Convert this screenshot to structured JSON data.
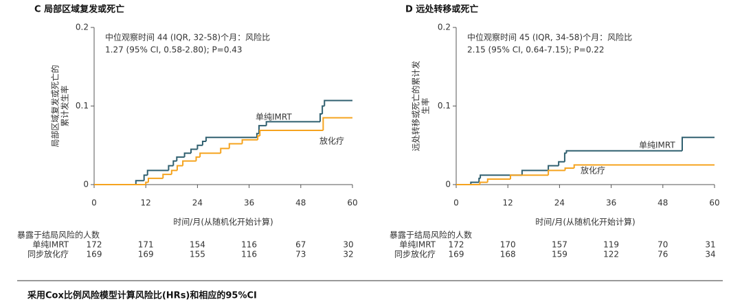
{
  "chart_data": [
    {
      "type": "line",
      "step": true,
      "title": "C 局部区域复发或死亡",
      "ylabel": [
        "局部区域复发或死亡的",
        "累计发生率"
      ],
      "xlabel": "时间/月(从随机化开始计算)",
      "annotation": [
        "中位观察时间 44 (IQR, 32-58)个月：风险比",
        "1.27 (95% CI, 0.58-2.80); P=0.43"
      ],
      "xlim": [
        0,
        60
      ],
      "ylim": [
        0,
        0.2
      ],
      "xticks": [
        0,
        12,
        24,
        36,
        48,
        60
      ],
      "yticks": [
        0,
        0.1,
        0.2
      ],
      "series": [
        {
          "name": "单纯IMRT",
          "color": "#2f5f6f",
          "x": [
            0,
            9.7,
            11.6,
            12.4,
            17.3,
            18.4,
            19.2,
            21,
            22.5,
            24,
            25.2,
            26,
            37.8,
            38.3,
            40,
            52.5,
            53,
            53.5
          ],
          "values": [
            0,
            0.005,
            0.012,
            0.018,
            0.024,
            0.03,
            0.035,
            0.04,
            0.045,
            0.05,
            0.055,
            0.06,
            0.065,
            0.075,
            0.08,
            0.09,
            0.1,
            0.107
          ]
        },
        {
          "name": "放化疗",
          "color": "#f5a31e",
          "x": [
            0,
            12,
            12.6,
            16,
            18,
            19.3,
            20.6,
            23.7,
            24.6,
            29.4,
            31.4,
            34.4,
            38,
            38.5,
            53.2
          ],
          "values": [
            0,
            0.003,
            0.008,
            0.013,
            0.018,
            0.024,
            0.03,
            0.035,
            0.04,
            0.046,
            0.052,
            0.057,
            0.062,
            0.069,
            0.085
          ]
        }
      ],
      "risk_table": {
        "title": "暴露于结局风险的人数",
        "rows": [
          {
            "name": "单纯IMRT",
            "values": [
              172,
              171,
              154,
              116,
              67,
              30
            ]
          },
          {
            "name": "同步放化疗",
            "values": [
              169,
              169,
              155,
              116,
              73,
              32
            ]
          }
        ]
      }
    },
    {
      "type": "line",
      "step": true,
      "title": "D 远处转移或死亡",
      "ylabel": [
        "远处转移或死亡的累计发",
        "生率"
      ],
      "xlabel": "时间/月(从随机化开始计算)",
      "annotation": [
        "中位观察时间 45 (IQR, 34-58)个月：风险比",
        "2.15 (95% CI, 0.64-7.15); P=0.22"
      ],
      "xlim": [
        0,
        60
      ],
      "ylim": [
        0,
        0.2
      ],
      "xticks": [
        0,
        12,
        24,
        36,
        48,
        60
      ],
      "yticks": [
        0,
        0.1,
        0.2
      ],
      "series": [
        {
          "name": "单纯IMRT",
          "color": "#2f5f6f",
          "x": [
            0,
            3.4,
            5.3,
            5.6,
            15.3,
            21.4,
            23.8,
            25.2,
            25.6,
            52.5
          ],
          "values": [
            0,
            0.003,
            0.008,
            0.012,
            0.018,
            0.024,
            0.029,
            0.04,
            0.043,
            0.06
          ]
        },
        {
          "name": "放化疗",
          "color": "#f5a31e",
          "x": [
            0,
            5.5,
            7.3,
            12.6,
            21.4,
            25.3,
            27.4
          ],
          "values": [
            0,
            0.003,
            0.007,
            0.012,
            0.018,
            0.021,
            0.025
          ]
        }
      ],
      "risk_table": {
        "title": "暴露于结局风险的人数",
        "rows": [
          {
            "name": "单纯IMRT",
            "values": [
              172,
              170,
              157,
              119,
              70,
              31
            ]
          },
          {
            "name": "同步放化疗",
            "values": [
              169,
              168,
              159,
              122,
              76,
              34
            ]
          }
        ]
      }
    }
  ],
  "footnote": "采用Cox比例风险模型计算风险比(HRs)和相应的95%CI"
}
